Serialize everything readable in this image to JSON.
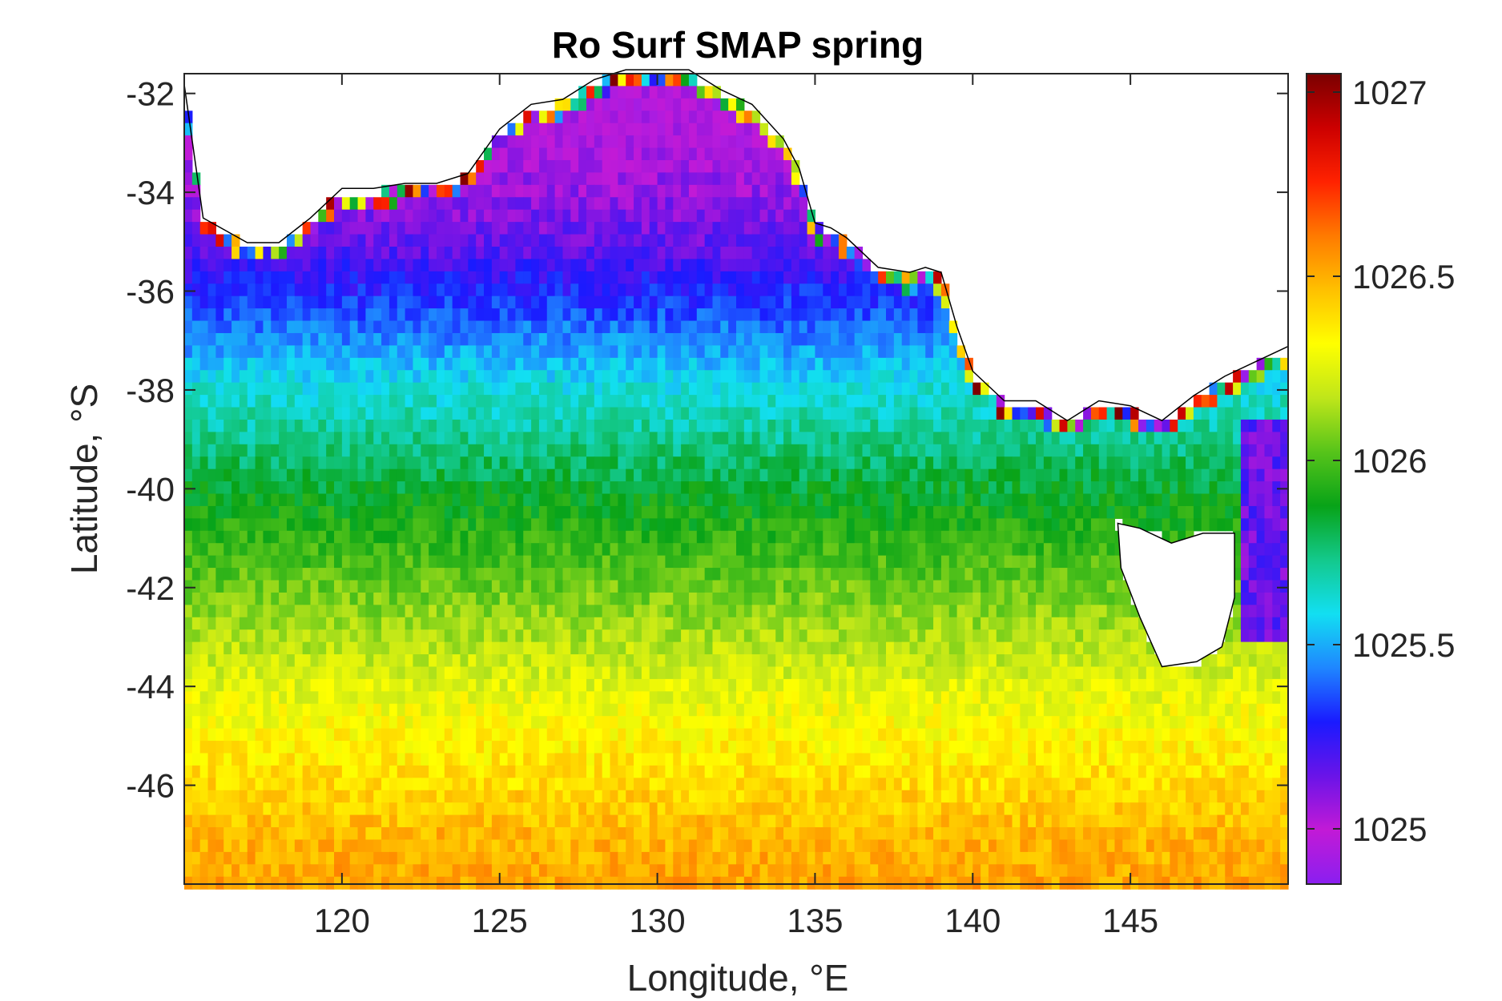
{
  "chart_data": {
    "type": "heatmap",
    "title": "Ro Surf SMAP spring",
    "xlabel": "Longitude, °E",
    "ylabel": "Latitude, °S",
    "xlim": [
      115,
      150
    ],
    "ylim": [
      -48,
      -31.6
    ],
    "xticks": [
      120,
      125,
      130,
      135,
      140,
      145
    ],
    "yticks": [
      -32,
      -34,
      -36,
      -38,
      -40,
      -42,
      -44,
      -46
    ],
    "colorbar": {
      "clim": [
        1024.85,
        1027.05
      ],
      "ticks": [
        1025,
        1025.5,
        1026,
        1026.5,
        1027
      ],
      "tick_labels": [
        "1025",
        "1025.5",
        "1026",
        "1026.5",
        "1027"
      ],
      "colormap": [
        "#8a1ff0",
        "#c21ad6",
        "#6a14e8",
        "#1a1aff",
        "#1f86ff",
        "#12dff2",
        "#13c98c",
        "#08a318",
        "#57c41a",
        "#bfe61a",
        "#ffff00",
        "#ffc000",
        "#ff7a00",
        "#ff2200",
        "#cc0000",
        "#7a0000"
      ]
    },
    "grid_resolution_deg": 0.25,
    "density_profile_by_latitude": [
      {
        "lat": -33,
        "value": 1025.0
      },
      {
        "lat": -35,
        "value": 1025.15
      },
      {
        "lat": -36,
        "value": 1025.3
      },
      {
        "lat": -37,
        "value": 1025.45
      },
      {
        "lat": -38,
        "value": 1025.62
      },
      {
        "lat": -39,
        "value": 1025.72
      },
      {
        "lat": -40,
        "value": 1025.85
      },
      {
        "lat": -41,
        "value": 1025.95
      },
      {
        "lat": -42,
        "value": 1026.05
      },
      {
        "lat": -43,
        "value": 1026.15
      },
      {
        "lat": -44,
        "value": 1026.25
      },
      {
        "lat": -45,
        "value": 1026.33
      },
      {
        "lat": -46,
        "value": 1026.4
      },
      {
        "lat": -47,
        "value": 1026.48
      },
      {
        "lat": -48,
        "value": 1026.52
      }
    ]
  }
}
